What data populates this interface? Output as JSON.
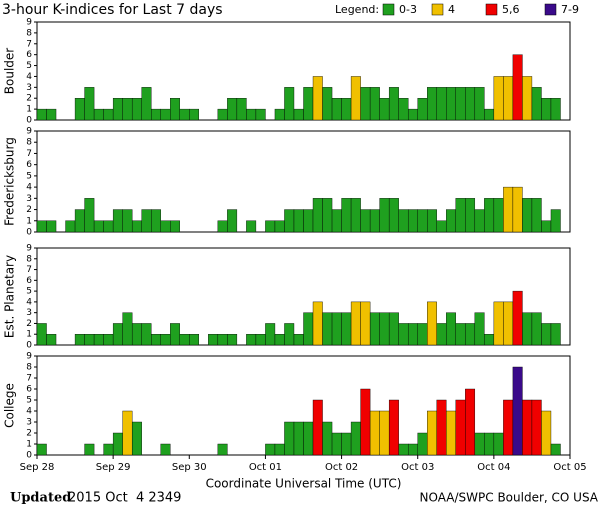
{
  "header": {
    "title": "3-hour K-indices for Last 7 days",
    "legend_title": "Legend:",
    "legend": [
      {
        "label": "0-3",
        "color": "#1fa01f"
      },
      {
        "label": "4",
        "color": "#f0c000"
      },
      {
        "label": "5,6",
        "color": "#f00000"
      },
      {
        "label": "7-9",
        "color": "#3a0a8a"
      }
    ]
  },
  "chart_data": [
    {
      "type": "bar",
      "ylabel": "Boulder",
      "ylim": [
        0,
        9
      ],
      "yticks": [
        0,
        1,
        2,
        3,
        4,
        5,
        6,
        7,
        8,
        9
      ],
      "xlim": [
        0,
        56
      ],
      "values": [
        1,
        1,
        0,
        0,
        2,
        3,
        1,
        1,
        2,
        2,
        2,
        3,
        1,
        1,
        2,
        1,
        1,
        0,
        0,
        1,
        2,
        2,
        1,
        1,
        0,
        1,
        3,
        1,
        3,
        4,
        3,
        2,
        2,
        4,
        3,
        3,
        2,
        3,
        2,
        1,
        2,
        3,
        3,
        3,
        3,
        3,
        3,
        1,
        4,
        4,
        6,
        4,
        3,
        2,
        2,
        0
      ],
      "colors": [
        "#1fa01f",
        "#1fa01f",
        "#1fa01f",
        "#1fa01f",
        "#1fa01f",
        "#1fa01f",
        "#1fa01f",
        "#1fa01f",
        "#1fa01f",
        "#1fa01f",
        "#1fa01f",
        "#1fa01f",
        "#1fa01f",
        "#1fa01f",
        "#1fa01f",
        "#1fa01f",
        "#1fa01f",
        "#1fa01f",
        "#1fa01f",
        "#1fa01f",
        "#1fa01f",
        "#1fa01f",
        "#1fa01f",
        "#1fa01f",
        "#1fa01f",
        "#1fa01f",
        "#1fa01f",
        "#1fa01f",
        "#1fa01f",
        "#f0c000",
        "#1fa01f",
        "#1fa01f",
        "#1fa01f",
        "#f0c000",
        "#1fa01f",
        "#1fa01f",
        "#1fa01f",
        "#1fa01f",
        "#1fa01f",
        "#1fa01f",
        "#1fa01f",
        "#1fa01f",
        "#1fa01f",
        "#1fa01f",
        "#1fa01f",
        "#1fa01f",
        "#1fa01f",
        "#1fa01f",
        "#f0c000",
        "#f0c000",
        "#f00000",
        "#f0c000",
        "#1fa01f",
        "#1fa01f",
        "#1fa01f",
        "#1fa01f"
      ]
    },
    {
      "type": "bar",
      "ylabel": "Fredericksburg",
      "ylim": [
        0,
        9
      ],
      "yticks": [
        0,
        1,
        2,
        3,
        4,
        5,
        6,
        7,
        8,
        9
      ],
      "xlim": [
        0,
        56
      ],
      "values": [
        1,
        1,
        0,
        1,
        2,
        3,
        1,
        1,
        2,
        2,
        1,
        2,
        2,
        1,
        1,
        0,
        0,
        0,
        0,
        1,
        2,
        0,
        1,
        0,
        1,
        1,
        2,
        2,
        2,
        3,
        3,
        2,
        3,
        3,
        2,
        2,
        3,
        3,
        2,
        2,
        2,
        2,
        1,
        2,
        3,
        3,
        2,
        3,
        3,
        4,
        4,
        3,
        3,
        1,
        2,
        0
      ],
      "colors": [
        "#1fa01f",
        "#1fa01f",
        "#1fa01f",
        "#1fa01f",
        "#1fa01f",
        "#1fa01f",
        "#1fa01f",
        "#1fa01f",
        "#1fa01f",
        "#1fa01f",
        "#1fa01f",
        "#1fa01f",
        "#1fa01f",
        "#1fa01f",
        "#1fa01f",
        "#1fa01f",
        "#1fa01f",
        "#1fa01f",
        "#1fa01f",
        "#1fa01f",
        "#1fa01f",
        "#1fa01f",
        "#1fa01f",
        "#1fa01f",
        "#1fa01f",
        "#1fa01f",
        "#1fa01f",
        "#1fa01f",
        "#1fa01f",
        "#1fa01f",
        "#1fa01f",
        "#1fa01f",
        "#1fa01f",
        "#1fa01f",
        "#1fa01f",
        "#1fa01f",
        "#1fa01f",
        "#1fa01f",
        "#1fa01f",
        "#1fa01f",
        "#1fa01f",
        "#1fa01f",
        "#1fa01f",
        "#1fa01f",
        "#1fa01f",
        "#1fa01f",
        "#1fa01f",
        "#1fa01f",
        "#1fa01f",
        "#f0c000",
        "#f0c000",
        "#1fa01f",
        "#1fa01f",
        "#1fa01f",
        "#1fa01f",
        "#1fa01f"
      ]
    },
    {
      "type": "bar",
      "ylabel": "Est. Planetary",
      "ylim": [
        0,
        9
      ],
      "yticks": [
        0,
        1,
        2,
        3,
        4,
        5,
        6,
        7,
        8,
        9
      ],
      "xlim": [
        0,
        56
      ],
      "values": [
        2,
        1,
        0,
        0,
        1,
        1,
        1,
        1,
        2,
        3,
        2,
        2,
        1,
        1,
        2,
        1,
        1,
        0,
        1,
        1,
        1,
        0,
        1,
        1,
        2,
        1,
        2,
        1,
        3,
        4,
        3,
        3,
        3,
        4,
        4,
        3,
        3,
        3,
        2,
        2,
        2,
        4,
        2,
        3,
        2,
        2,
        3,
        1,
        4,
        4,
        5,
        3,
        3,
        2,
        2,
        0
      ],
      "colors": [
        "#1fa01f",
        "#1fa01f",
        "#1fa01f",
        "#1fa01f",
        "#1fa01f",
        "#1fa01f",
        "#1fa01f",
        "#1fa01f",
        "#1fa01f",
        "#1fa01f",
        "#1fa01f",
        "#1fa01f",
        "#1fa01f",
        "#1fa01f",
        "#1fa01f",
        "#1fa01f",
        "#1fa01f",
        "#1fa01f",
        "#1fa01f",
        "#1fa01f",
        "#1fa01f",
        "#1fa01f",
        "#1fa01f",
        "#1fa01f",
        "#1fa01f",
        "#1fa01f",
        "#1fa01f",
        "#1fa01f",
        "#1fa01f",
        "#f0c000",
        "#1fa01f",
        "#1fa01f",
        "#1fa01f",
        "#f0c000",
        "#f0c000",
        "#1fa01f",
        "#1fa01f",
        "#1fa01f",
        "#1fa01f",
        "#1fa01f",
        "#1fa01f",
        "#f0c000",
        "#1fa01f",
        "#1fa01f",
        "#1fa01f",
        "#1fa01f",
        "#1fa01f",
        "#1fa01f",
        "#f0c000",
        "#f0c000",
        "#f00000",
        "#1fa01f",
        "#1fa01f",
        "#1fa01f",
        "#1fa01f",
        "#1fa01f"
      ]
    },
    {
      "type": "bar",
      "ylabel": "College",
      "ylim": [
        0,
        9
      ],
      "yticks": [
        0,
        1,
        2,
        3,
        4,
        5,
        6,
        7,
        8,
        9
      ],
      "xlim": [
        0,
        56
      ],
      "xticks": [
        {
          "value": 0,
          "label": "Sep 28"
        },
        {
          "value": 8,
          "label": "Sep 29"
        },
        {
          "value": 16,
          "label": "Sep 30"
        },
        {
          "value": 24,
          "label": "Oct 01"
        },
        {
          "value": 32,
          "label": "Oct 02"
        },
        {
          "value": 40,
          "label": "Oct 03"
        },
        {
          "value": 48,
          "label": "Oct 04"
        },
        {
          "value": 56,
          "label": "Oct 05"
        }
      ],
      "xlabel": "Coordinate Universal Time (UTC)",
      "values": [
        1,
        0,
        0,
        0,
        0,
        1,
        0,
        1,
        2,
        4,
        3,
        0,
        0,
        1,
        0,
        0,
        0,
        0,
        0,
        1,
        0,
        0,
        0,
        0,
        1,
        1,
        3,
        3,
        3,
        5,
        3,
        2,
        2,
        3,
        6,
        4,
        4,
        5,
        1,
        1,
        2,
        4,
        5,
        4,
        5,
        6,
        2,
        2,
        2,
        5,
        8,
        5,
        5,
        4,
        1,
        0
      ],
      "colors": [
        "#1fa01f",
        "#1fa01f",
        "#1fa01f",
        "#1fa01f",
        "#1fa01f",
        "#1fa01f",
        "#1fa01f",
        "#1fa01f",
        "#1fa01f",
        "#f0c000",
        "#1fa01f",
        "#1fa01f",
        "#1fa01f",
        "#1fa01f",
        "#1fa01f",
        "#1fa01f",
        "#1fa01f",
        "#1fa01f",
        "#1fa01f",
        "#1fa01f",
        "#1fa01f",
        "#1fa01f",
        "#1fa01f",
        "#1fa01f",
        "#1fa01f",
        "#1fa01f",
        "#1fa01f",
        "#1fa01f",
        "#1fa01f",
        "#f00000",
        "#1fa01f",
        "#1fa01f",
        "#1fa01f",
        "#1fa01f",
        "#f00000",
        "#f0c000",
        "#f0c000",
        "#f00000",
        "#1fa01f",
        "#1fa01f",
        "#1fa01f",
        "#f0c000",
        "#f00000",
        "#f0c000",
        "#f00000",
        "#f00000",
        "#1fa01f",
        "#1fa01f",
        "#1fa01f",
        "#f00000",
        "#3a0a8a",
        "#f00000",
        "#f00000",
        "#f0c000",
        "#1fa01f",
        "#1fa01f"
      ]
    }
  ],
  "footer": {
    "updated_label": "Updated",
    "updated_time": "2015 Oct  4 2349",
    "source": "NOAA/SWPC Boulder, CO USA"
  }
}
